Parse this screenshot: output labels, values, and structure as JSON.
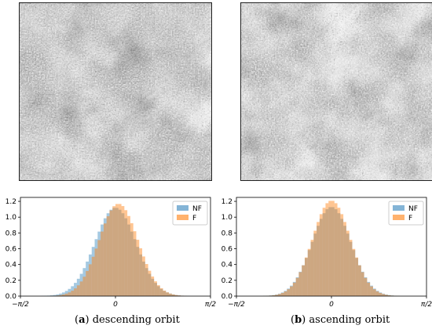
{
  "panels": [
    {
      "id": "a",
      "letter": "a",
      "caption": "descending orbit"
    },
    {
      "id": "b",
      "letter": "b",
      "caption": "ascending orbit"
    }
  ],
  "chart_data": [
    {
      "type": "bar",
      "title": "",
      "xlabel": "",
      "ylabel": "",
      "xlim": [
        "-π/2",
        "π/2"
      ],
      "ylim": [
        0,
        1.25
      ],
      "x_tick_labels": [
        "−π/2",
        "0",
        "π/2"
      ],
      "y_tick_labels": [
        "0.0",
        "0.2",
        "0.4",
        "0.6",
        "0.8",
        "1.0",
        "1.2"
      ],
      "legend_position": "top-right",
      "series": [
        {
          "name": "NF",
          "color": "#1f77b4",
          "alpha": 0.4,
          "distribution": "gaussian",
          "mean": 0.0,
          "std": 0.34,
          "peak": 1.12
        },
        {
          "name": "F",
          "color": "#ff7f0e",
          "alpha": 0.45,
          "distribution": "gaussian",
          "mean": 0.05,
          "std": 0.32,
          "peak": 1.17
        }
      ]
    },
    {
      "type": "bar",
      "title": "",
      "xlabel": "",
      "ylabel": "",
      "xlim": [
        "-π/2",
        "π/2"
      ],
      "ylim": [
        0,
        1.25
      ],
      "x_tick_labels": [
        "−π/2",
        "0",
        "π/2"
      ],
      "y_tick_labels": [
        "0.0",
        "0.2",
        "0.4",
        "0.6",
        "0.8",
        "1.0",
        "1.2"
      ],
      "legend_position": "top-right",
      "series": [
        {
          "name": "NF",
          "color": "#1f77b4",
          "alpha": 0.4,
          "distribution": "gaussian",
          "mean": 0.0,
          "std": 0.32,
          "peak": 1.13
        },
        {
          "name": "F",
          "color": "#ff7f0e",
          "alpha": 0.45,
          "distribution": "gaussian",
          "mean": 0.0,
          "std": 0.31,
          "peak": 1.21
        }
      ]
    }
  ]
}
